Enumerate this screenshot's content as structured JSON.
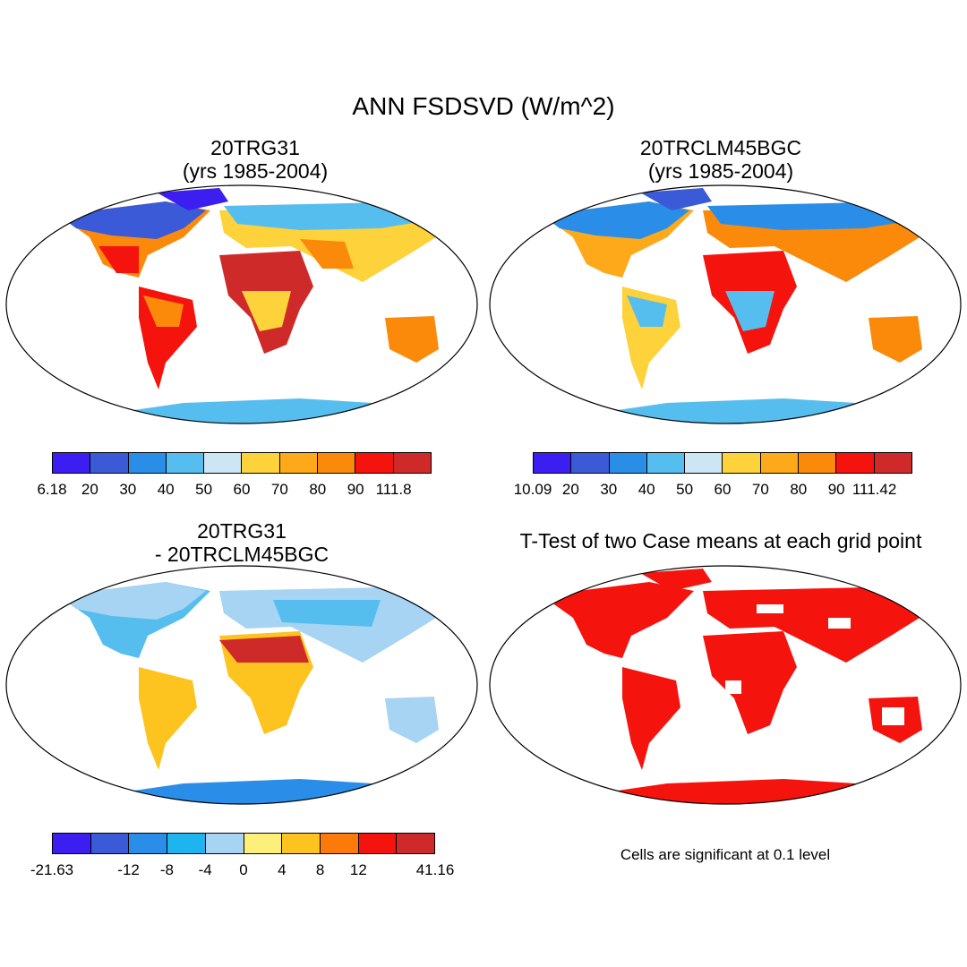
{
  "figure": {
    "title": "ANN FSDSVD (W/m^2)"
  },
  "panels": [
    {
      "id": "case1",
      "title_line1": "20TRG31",
      "title_line2": "(yrs 1985-2004)",
      "colorbar": {
        "labels": [
          "6.18",
          "20",
          "30",
          "40",
          "50",
          "60",
          "70",
          "80",
          "90",
          "111.8"
        ],
        "colors": [
          "#3c1ef0",
          "#3a5ad8",
          "#2a8ee8",
          "#56beef",
          "#cce6f5",
          "#fdd23a",
          "#fda91a",
          "#fb8a0a",
          "#f5130e",
          "#cf2a2a"
        ]
      }
    },
    {
      "id": "case2",
      "title_line1": "20TRCLM45BGC",
      "title_line2": "(yrs 1985-2004)",
      "colorbar": {
        "labels": [
          "10.09",
          "20",
          "30",
          "40",
          "50",
          "60",
          "70",
          "80",
          "90",
          "111.42"
        ],
        "colors": [
          "#3c1ef0",
          "#3a5ad8",
          "#2a8ee8",
          "#56beef",
          "#cce6f5",
          "#fdd23a",
          "#fda91a",
          "#fb8a0a",
          "#f5130e",
          "#cf2a2a"
        ]
      }
    },
    {
      "id": "diff",
      "title_line1": "20TRG31",
      "title_line2": "- 20TRCLM45BGC",
      "colorbar": {
        "labels": [
          "-21.63",
          "-12",
          "-8",
          "-4",
          "0",
          "4",
          "8",
          "12",
          "41.16"
        ],
        "colors": [
          "#3c1ef0",
          "#3a5ad8",
          "#2a8ee8",
          "#1eb4f0",
          "#a6d4f2",
          "#fdf07a",
          "#fdc31e",
          "#fb7a0a",
          "#f5130e",
          "#cf2a2a"
        ]
      }
    },
    {
      "id": "ttest",
      "title_line1": "T-Test of two Case means at each grid point",
      "note": "Cells are significant at 0.1 level",
      "color": "#f5130e"
    }
  ]
}
